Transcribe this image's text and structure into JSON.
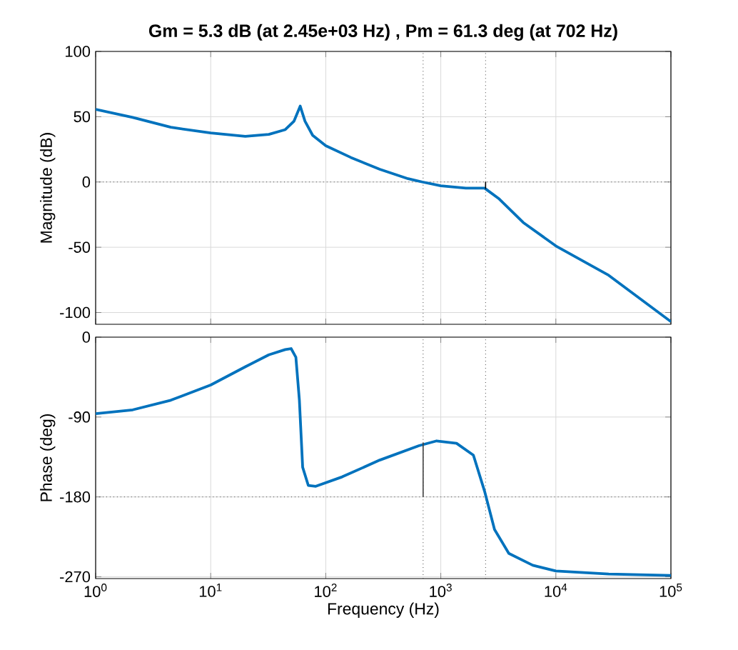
{
  "chart_data": [
    {
      "type": "line",
      "title": "Gm = 5.3 dB (at 2.45e+03 Hz) ,  Pm = 61.3 deg (at 702 Hz)",
      "ylabel": "Magnitude (dB)",
      "log": "x",
      "grid": true,
      "tick_labels": "y",
      "xlim": [
        1,
        100000
      ],
      "ylim": [
        -109,
        100
      ],
      "yticks": [
        -100,
        -50,
        0,
        50,
        100
      ],
      "xticks": [
        {
          "value": 1,
          "label": null
        },
        {
          "value": 10,
          "label": null
        },
        {
          "value": 100,
          "label": null
        },
        {
          "value": 1000,
          "label": null
        },
        {
          "value": 10000,
          "label": null
        },
        {
          "value": 100000,
          "label": null
        }
      ],
      "series": [
        {
          "color": "#0072bd",
          "x": [
            1,
            2.1,
            4.5,
            10,
            20,
            32,
            44.5,
            53,
            60,
            66,
            77,
            100,
            165,
            295,
            520,
            690,
            1000,
            1650,
            2400,
            3220,
            5200,
            10000,
            28800,
            100000
          ],
          "values": [
            55.6,
            49.5,
            41.9,
            37.5,
            35.0,
            36.5,
            40.1,
            46.6,
            58.1,
            46.6,
            35.7,
            27.8,
            18.8,
            9.7,
            2.5,
            0,
            -2.9,
            -4.7,
            -4.7,
            -13,
            -31,
            -49,
            -71.5,
            -107
          ]
        },
        {
          "color": "#000000",
          "x": [
            2450,
            2450
          ],
          "values": [
            -5.3,
            0
          ]
        }
      ],
      "ref_lines": [
        {
          "axis": "y",
          "value": 0,
          "color": "#404040",
          "line_style": "dotted"
        },
        {
          "axis": "x",
          "value": 702,
          "color": "#404040",
          "line_style": "dotted"
        },
        {
          "axis": "x",
          "value": 2450,
          "color": "#404040",
          "line_style": "dotted"
        }
      ]
    },
    {
      "type": "line",
      "xlabel": "Frequency  (Hz)",
      "ylabel": "Phase (deg)",
      "log": "x",
      "grid": true,
      "xlim": [
        1,
        100000
      ],
      "ylim": [
        -272,
        0
      ],
      "yticks": [
        -270,
        -180,
        -90,
        0
      ],
      "xticks": [
        {
          "value": 1,
          "label": "10$^{0}$"
        },
        {
          "value": 10,
          "label": "10$^{1}$"
        },
        {
          "value": 100,
          "label": "10$^{2}$"
        },
        {
          "value": 1000,
          "label": "10$^{3}$"
        },
        {
          "value": 10000,
          "label": "10$^{4}$"
        },
        {
          "value": 100000,
          "label": "10$^{5}$"
        }
      ],
      "series": [
        {
          "color": "#0072bd",
          "x": [
            1,
            2.1,
            4.5,
            10,
            20,
            32,
            44.5,
            50,
            55,
            59,
            63,
            70.5,
            82,
            139,
            295,
            645,
            920,
            1370,
            1920,
            2400,
            2930,
            3900,
            6300,
            10000,
            28800,
            100000
          ],
          "values": [
            -86.2,
            -81.9,
            -71.1,
            -53.9,
            -33.4,
            -19.9,
            -14,
            -12.9,
            -22.6,
            -71,
            -146.6,
            -167,
            -168,
            -157.4,
            -138.5,
            -122.3,
            -116.9,
            -119.6,
            -133,
            -173.5,
            -216.6,
            -243.6,
            -257,
            -263.5,
            -266.8,
            -268.4
          ]
        },
        {
          "color": "#404040",
          "x": [
            702,
            702
          ],
          "values": [
            -180,
            -118.7
          ]
        }
      ],
      "ref_lines": [
        {
          "axis": "y",
          "value": -180,
          "color": "#404040",
          "line_style": "dotted"
        },
        {
          "axis": "x",
          "value": 702,
          "color": "#404040",
          "line_style": "dotted"
        },
        {
          "axis": "x",
          "value": 2450,
          "color": "#404040",
          "line_style": "dotted"
        }
      ]
    }
  ]
}
